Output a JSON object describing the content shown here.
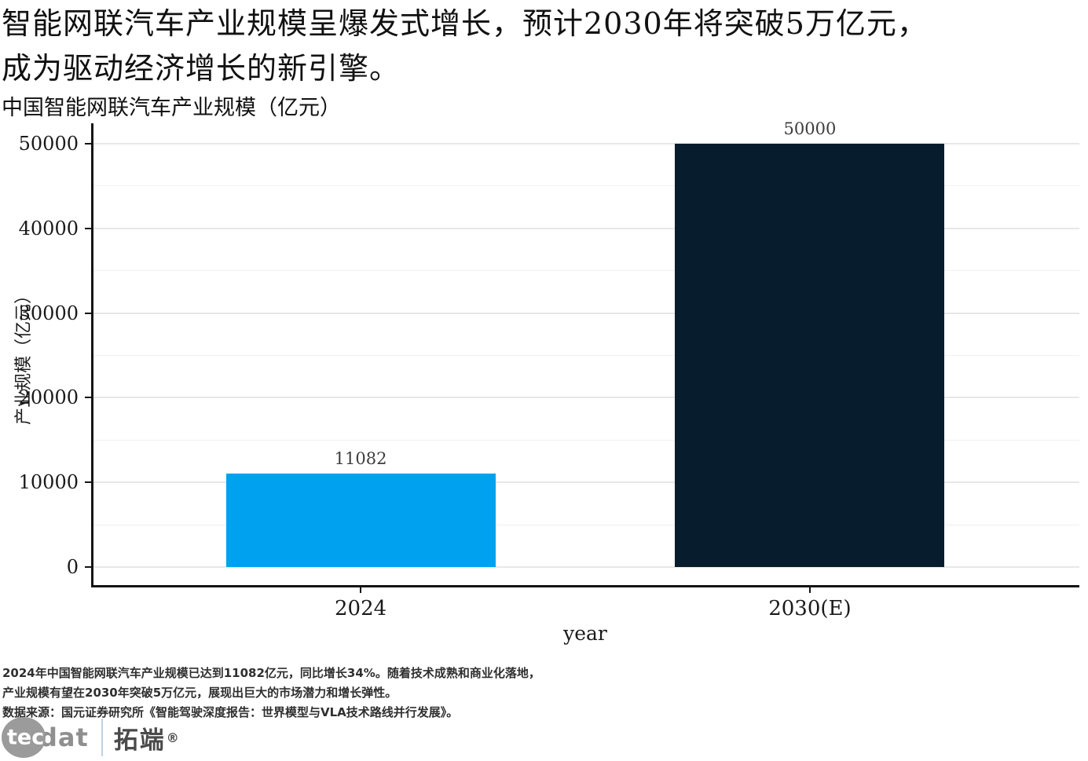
{
  "header": {
    "title_line1": "智能网联汽车产业规模呈爆发式增长，预计2030年将突破5万亿元，",
    "title_line2": "成为驱动经济增长的新引擎。",
    "subtitle": "中国智能网联汽车产业规模（亿元）"
  },
  "chart_data": {
    "type": "bar",
    "categories": [
      "2024",
      "2030(E)"
    ],
    "values": [
      11082,
      50000
    ],
    "value_labels": [
      "11082",
      "50000"
    ],
    "bar_colors": [
      "#00a2ef",
      "#071d2d"
    ],
    "title": "中国智能网联汽车产业规模（亿元）",
    "xlabel": "year",
    "ylabel": "产业规模（亿元）",
    "ylim": [
      0,
      50000
    ],
    "yticks": [
      0,
      10000,
      20000,
      30000,
      40000,
      50000
    ],
    "ytick_labels": [
      "0",
      "10000",
      "20000",
      "30000",
      "40000",
      "50000"
    ],
    "minor_yticks": [
      5000,
      15000,
      25000,
      35000,
      45000
    ],
    "grid": true,
    "legend": "none"
  },
  "footer": {
    "line1": "2024年中国智能网联汽车产业规模已达到11082亿元，同比增长34%。随着技术成熟和商业化落地，",
    "line2": "产业规模有望在2030年突破5万亿元，展现出巨大的市场潜力和增长弹性。",
    "line3": "数据来源：国元证券研究所《智能驾驶深度报告：世界模型与VLA技术路线并行发展》。"
  },
  "logo": {
    "tec": "tec",
    "dat": "dat",
    "cn": "拓端",
    "reg": "®"
  },
  "colors": {
    "bar_2024": "#00a2ef",
    "bar_2030": "#071d2d",
    "axis": "#141414",
    "grid_major": "#e7e7e7",
    "grid_minor": "#f0f0f0"
  }
}
